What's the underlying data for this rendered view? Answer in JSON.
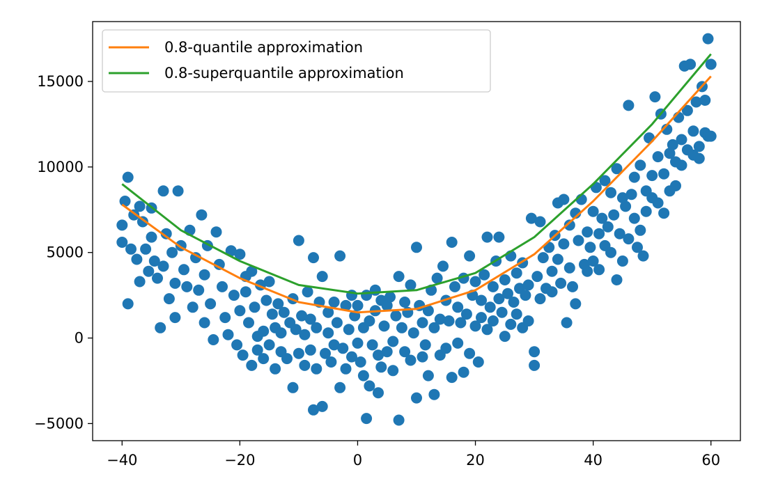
{
  "chart_data": {
    "type": "scatter",
    "title": "",
    "xlabel": "",
    "ylabel": "",
    "xlim": [
      -45,
      65
    ],
    "ylim": [
      -6000,
      18500
    ],
    "xticks": [
      -40,
      -20,
      0,
      20,
      40,
      60
    ],
    "yticks": [
      -5000,
      0,
      5000,
      10000,
      15000
    ],
    "xtick_labels": [
      "−40",
      "−20",
      "0",
      "20",
      "40",
      "60"
    ],
    "ytick_labels": [
      "−5000",
      "0",
      "5000",
      "10000",
      "15000"
    ],
    "grid": false,
    "legend": {
      "placement": "top-left",
      "entries": [
        "0.8-quantile approximation",
        "0.8-superquantile approximation"
      ]
    },
    "colors": {
      "points": "#1f77b4",
      "quantile": "#ff7f0e",
      "superquantile": "#2ca02c"
    },
    "series": [
      {
        "name": "0.8-quantile approximation",
        "kind": "line",
        "color": "#ff7f0e",
        "x": [
          -40,
          -30,
          -20,
          -10,
          0,
          10,
          20,
          30,
          40,
          50,
          60
        ],
        "y": [
          7800,
          5300,
          3500,
          2100,
          1500,
          1700,
          2800,
          4900,
          8000,
          11500,
          15300
        ]
      },
      {
        "name": "0.8-superquantile approximation",
        "kind": "line",
        "color": "#2ca02c",
        "x": [
          -40,
          -30,
          -20,
          -10,
          0,
          10,
          20,
          30,
          40,
          50,
          60
        ],
        "y": [
          9000,
          6300,
          4500,
          3100,
          2600,
          2800,
          3800,
          5900,
          9000,
          12500,
          16600
        ]
      },
      {
        "kind": "scatter",
        "color": "#1f77b4",
        "points": [
          [
            -40,
            6600
          ],
          [
            -40,
            5600
          ],
          [
            -39.5,
            8000
          ],
          [
            -39,
            9400
          ],
          [
            -39,
            2000
          ],
          [
            -38.5,
            5200
          ],
          [
            -38,
            7200
          ],
          [
            -37.5,
            4600
          ],
          [
            -37,
            3300
          ],
          [
            -37,
            7700
          ],
          [
            -36.5,
            6800
          ],
          [
            -36,
            5200
          ],
          [
            -35.5,
            3900
          ],
          [
            -35,
            7600
          ],
          [
            -35,
            5900
          ],
          [
            -34.5,
            4500
          ],
          [
            -34,
            3500
          ],
          [
            -33.5,
            600
          ],
          [
            -33,
            8600
          ],
          [
            -33,
            4200
          ],
          [
            -32.5,
            6100
          ],
          [
            -32,
            2300
          ],
          [
            -31.5,
            5000
          ],
          [
            -31,
            1200
          ],
          [
            -31,
            3200
          ],
          [
            -30.5,
            8600
          ],
          [
            -30,
            5400
          ],
          [
            -29.5,
            4000
          ],
          [
            -29,
            3000
          ],
          [
            -28.5,
            6300
          ],
          [
            -28,
            1800
          ],
          [
            -27.5,
            4700
          ],
          [
            -27,
            2800
          ],
          [
            -26.5,
            7200
          ],
          [
            -26,
            3700
          ],
          [
            -26,
            900
          ],
          [
            -25.5,
            5400
          ],
          [
            -25,
            2000
          ],
          [
            -24.5,
            -100
          ],
          [
            -24,
            6200
          ],
          [
            -23.5,
            4300
          ],
          [
            -23,
            3000
          ],
          [
            -22.5,
            1200
          ],
          [
            -22,
            200
          ],
          [
            -21.5,
            5100
          ],
          [
            -21,
            2500
          ],
          [
            -20.5,
            -400
          ],
          [
            -20,
            4900
          ],
          [
            -20,
            1600
          ],
          [
            -19.5,
            -1000
          ],
          [
            -19,
            3600
          ],
          [
            -19,
            2700
          ],
          [
            -18.5,
            900
          ],
          [
            -18,
            -1600
          ],
          [
            -18,
            3900
          ],
          [
            -17.5,
            1800
          ],
          [
            -17,
            100
          ],
          [
            -17,
            -700
          ],
          [
            -16.5,
            3100
          ],
          [
            -16,
            400
          ],
          [
            -16,
            -1200
          ],
          [
            -15.5,
            2200
          ],
          [
            -15,
            3300
          ],
          [
            -15,
            -400
          ],
          [
            -14.5,
            1400
          ],
          [
            -14,
            600
          ],
          [
            -14,
            -1800
          ],
          [
            -13.5,
            2000
          ],
          [
            -13,
            -800
          ],
          [
            -13,
            300
          ],
          [
            -12.5,
            1500
          ],
          [
            -12,
            -1200
          ],
          [
            -11.5,
            900
          ],
          [
            -11,
            -2900
          ],
          [
            -11,
            2300
          ],
          [
            -10.5,
            500
          ],
          [
            -10,
            -900
          ],
          [
            -10,
            5700
          ],
          [
            -9.5,
            1300
          ],
          [
            -9,
            -1600
          ],
          [
            -9,
            200
          ],
          [
            -8.5,
            2700
          ],
          [
            -8,
            -700
          ],
          [
            -8,
            1100
          ],
          [
            -7.5,
            -4200
          ],
          [
            -7.5,
            4700
          ],
          [
            -7,
            -1800
          ],
          [
            -7,
            600
          ],
          [
            -6.5,
            2100
          ],
          [
            -6,
            3600
          ],
          [
            -6,
            -4000
          ],
          [
            -5.5,
            -900
          ],
          [
            -5,
            1500
          ],
          [
            -5,
            300
          ],
          [
            -4.5,
            -1400
          ],
          [
            -4,
            2100
          ],
          [
            -4,
            -400
          ],
          [
            -3.5,
            900
          ],
          [
            -3,
            -2900
          ],
          [
            -3,
            4800
          ],
          [
            -2.5,
            -600
          ],
          [
            -2,
            1900
          ],
          [
            -2,
            -1800
          ],
          [
            -1.5,
            500
          ],
          [
            -1,
            2500
          ],
          [
            -1,
            -1100
          ],
          [
            -0.5,
            1300
          ],
          [
            0,
            -300
          ],
          [
            0,
            1900
          ],
          [
            0.5,
            -1400
          ],
          [
            1,
            600
          ],
          [
            1,
            -2200
          ],
          [
            1.5,
            2500
          ],
          [
            1.5,
            -4700
          ],
          [
            2,
            1000
          ],
          [
            2,
            -2800
          ],
          [
            2.5,
            -400
          ],
          [
            3,
            2800
          ],
          [
            3,
            1600
          ],
          [
            3.5,
            -1000
          ],
          [
            3.5,
            -3200
          ],
          [
            4,
            2200
          ],
          [
            4,
            -1700
          ],
          [
            4.5,
            700
          ],
          [
            5,
            -800
          ],
          [
            5,
            1900
          ],
          [
            5.5,
            2400
          ],
          [
            6,
            -200
          ],
          [
            6,
            -1900
          ],
          [
            6.5,
            1300
          ],
          [
            7,
            3600
          ],
          [
            7,
            -4800
          ],
          [
            7.5,
            600
          ],
          [
            8,
            -800
          ],
          [
            8,
            2100
          ],
          [
            8.5,
            1500
          ],
          [
            9,
            -1300
          ],
          [
            9,
            3100
          ],
          [
            9.5,
            300
          ],
          [
            10,
            -3500
          ],
          [
            10,
            5300
          ],
          [
            10.5,
            1900
          ],
          [
            11,
            -1100
          ],
          [
            11,
            900
          ],
          [
            11.5,
            -400
          ],
          [
            12,
            1600
          ],
          [
            12,
            -2200
          ],
          [
            12.5,
            2800
          ],
          [
            13,
            600
          ],
          [
            13,
            -3300
          ],
          [
            13.5,
            3500
          ],
          [
            14,
            1100
          ],
          [
            14,
            -1000
          ],
          [
            14.5,
            4200
          ],
          [
            15,
            -600
          ],
          [
            15,
            2200
          ],
          [
            15.5,
            1000
          ],
          [
            16,
            -2300
          ],
          [
            16,
            5600
          ],
          [
            16.5,
            3000
          ],
          [
            17,
            -300
          ],
          [
            17,
            1800
          ],
          [
            17.5,
            900
          ],
          [
            18,
            -2000
          ],
          [
            18,
            3500
          ],
          [
            18.5,
            1400
          ],
          [
            19,
            -900
          ],
          [
            19,
            4800
          ],
          [
            19.5,
            2500
          ],
          [
            20,
            700
          ],
          [
            20,
            3300
          ],
          [
            20.5,
            -1400
          ],
          [
            21,
            2200
          ],
          [
            21,
            1200
          ],
          [
            21.5,
            3700
          ],
          [
            22,
            500
          ],
          [
            22,
            5900
          ],
          [
            22.5,
            1800
          ],
          [
            23,
            3000
          ],
          [
            23,
            1000
          ],
          [
            23.5,
            4500
          ],
          [
            24,
            2300
          ],
          [
            24,
            5900
          ],
          [
            24.5,
            1500
          ],
          [
            25,
            3400
          ],
          [
            25,
            100
          ],
          [
            25.5,
            2600
          ],
          [
            26,
            4800
          ],
          [
            26,
            800
          ],
          [
            26.5,
            2100
          ],
          [
            27,
            3800
          ],
          [
            27,
            1400
          ],
          [
            27.5,
            2900
          ],
          [
            28,
            4400
          ],
          [
            28,
            600
          ],
          [
            28.5,
            2500
          ],
          [
            29,
            3100
          ],
          [
            29,
            1000
          ],
          [
            29.5,
            7000
          ],
          [
            30,
            -800
          ],
          [
            30,
            -1600
          ],
          [
            30.5,
            3600
          ],
          [
            31,
            2300
          ],
          [
            31,
            6800
          ],
          [
            31.5,
            4700
          ],
          [
            32,
            2900
          ],
          [
            32.5,
            5300
          ],
          [
            33,
            3900
          ],
          [
            33,
            2700
          ],
          [
            33.5,
            6000
          ],
          [
            34,
            7900
          ],
          [
            34,
            4600
          ],
          [
            34.5,
            3200
          ],
          [
            35,
            5500
          ],
          [
            35,
            8100
          ],
          [
            35.5,
            900
          ],
          [
            36,
            4100
          ],
          [
            36,
            6600
          ],
          [
            36.5,
            3000
          ],
          [
            37,
            7300
          ],
          [
            37,
            2000
          ],
          [
            37.5,
            5700
          ],
          [
            38,
            8100
          ],
          [
            38.5,
            4300
          ],
          [
            39,
            6200
          ],
          [
            39,
            3900
          ],
          [
            39.5,
            5300
          ],
          [
            40,
            7400
          ],
          [
            40,
            4500
          ],
          [
            40.5,
            8800
          ],
          [
            41,
            6100
          ],
          [
            41,
            4000
          ],
          [
            41.5,
            7000
          ],
          [
            42,
            9200
          ],
          [
            42,
            5400
          ],
          [
            42.5,
            6500
          ],
          [
            43,
            8500
          ],
          [
            43,
            5000
          ],
          [
            43.5,
            7200
          ],
          [
            44,
            3400
          ],
          [
            44,
            9900
          ],
          [
            44.5,
            6100
          ],
          [
            45,
            8200
          ],
          [
            45,
            4500
          ],
          [
            45.5,
            7700
          ],
          [
            46,
            13600
          ],
          [
            46,
            5800
          ],
          [
            46.5,
            8400
          ],
          [
            47,
            9400
          ],
          [
            47,
            7000
          ],
          [
            47.5,
            5300
          ],
          [
            48,
            10100
          ],
          [
            48,
            6300
          ],
          [
            48.5,
            4800
          ],
          [
            49,
            8600
          ],
          [
            49,
            7400
          ],
          [
            49.5,
            11700
          ],
          [
            50,
            9500
          ],
          [
            50,
            8200
          ],
          [
            50.5,
            14100
          ],
          [
            51,
            10600
          ],
          [
            51,
            7900
          ],
          [
            51.5,
            13100
          ],
          [
            52,
            9600
          ],
          [
            52,
            7300
          ],
          [
            52.5,
            12200
          ],
          [
            53,
            10800
          ],
          [
            53,
            8600
          ],
          [
            53.5,
            11300
          ],
          [
            54,
            10300
          ],
          [
            54,
            8900
          ],
          [
            54.5,
            12900
          ],
          [
            55,
            11600
          ],
          [
            55,
            10100
          ],
          [
            55.5,
            15900
          ],
          [
            56,
            13300
          ],
          [
            56,
            11000
          ],
          [
            56.5,
            16000
          ],
          [
            57,
            12100
          ],
          [
            57,
            10700
          ],
          [
            57.5,
            13800
          ],
          [
            58,
            11200
          ],
          [
            58,
            10500
          ],
          [
            58.5,
            14700
          ],
          [
            59,
            12000
          ],
          [
            59,
            13900
          ],
          [
            59.5,
            17500
          ],
          [
            59.5,
            11800
          ],
          [
            60,
            16000
          ],
          [
            60,
            11800
          ]
        ]
      }
    ]
  }
}
